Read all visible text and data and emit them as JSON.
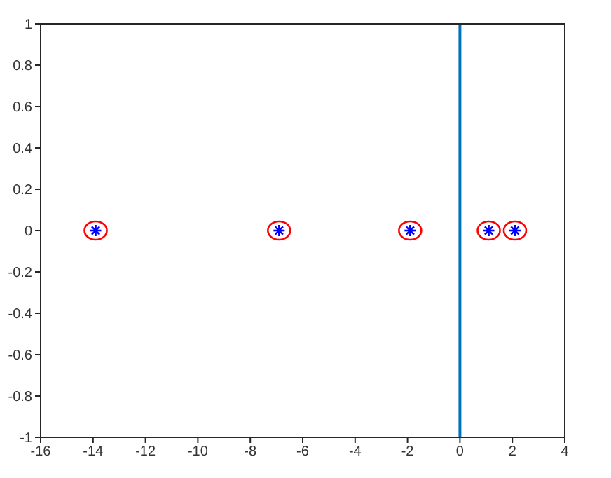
{
  "chart_data": {
    "type": "scatter",
    "x": [
      -13.9,
      -6.9,
      -1.9,
      1.1,
      2.1
    ],
    "series": [
      {
        "color": "#0000ff",
        "marker": "cross",
        "values": [
          0,
          0,
          0,
          0,
          0
        ]
      },
      {
        "color": "#ff0000",
        "marker": "circle",
        "values": [
          0,
          0,
          0,
          0,
          0
        ]
      }
    ],
    "xlim": [
      -16,
      4
    ],
    "xticks": [
      -16,
      -14,
      -12,
      -10,
      -8,
      -6,
      -4,
      -2,
      0,
      2,
      4
    ],
    "ylim": [
      -1,
      1
    ],
    "yticks": [
      -1,
      -0.8,
      -0.6,
      -0.4,
      -0.2,
      0,
      0.2,
      0.4,
      0.6,
      0.8,
      1
    ],
    "ref_lines": [
      {
        "axis": "x",
        "value": 0,
        "color": "#0072bd",
        "line_style": "solid"
      }
    ],
    "legend": false
  }
}
